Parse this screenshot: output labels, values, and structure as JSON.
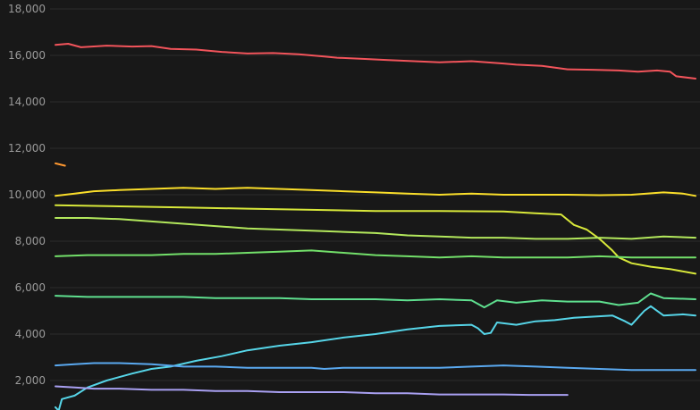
{
  "chart_data": {
    "type": "line",
    "title": "",
    "xlabel": "",
    "ylabel": "",
    "ylim": [
      900,
      18000
    ],
    "xlim": [
      0,
      100
    ],
    "grid": true,
    "legend": "none",
    "y_ticks": [
      {
        "value": 2000,
        "label": "2,000"
      },
      {
        "value": 4000,
        "label": "4,000"
      },
      {
        "value": 6000,
        "label": "6,000"
      },
      {
        "value": 8000,
        "label": "8,000"
      },
      {
        "value": 10000,
        "label": "10,000"
      },
      {
        "value": 12000,
        "label": "12,000"
      },
      {
        "value": 14000,
        "label": "14,000"
      },
      {
        "value": 16000,
        "label": "16,000"
      },
      {
        "value": 18000,
        "label": "18,000"
      }
    ],
    "series": [
      {
        "color": "#f2545b",
        "points": [
          [
            0,
            16450
          ],
          [
            2,
            16500
          ],
          [
            4,
            16350
          ],
          [
            8,
            16420
          ],
          [
            12,
            16380
          ],
          [
            15,
            16400
          ],
          [
            18,
            16280
          ],
          [
            22,
            16250
          ],
          [
            26,
            16150
          ],
          [
            30,
            16080
          ],
          [
            34,
            16100
          ],
          [
            38,
            16050
          ],
          [
            42,
            15950
          ],
          [
            44,
            15900
          ],
          [
            48,
            15850
          ],
          [
            52,
            15800
          ],
          [
            56,
            15750
          ],
          [
            60,
            15700
          ],
          [
            65,
            15750
          ],
          [
            70,
            15650
          ],
          [
            72,
            15600
          ],
          [
            76,
            15550
          ],
          [
            80,
            15400
          ],
          [
            84,
            15380
          ],
          [
            88,
            15350
          ],
          [
            91,
            15300
          ],
          [
            94,
            15350
          ],
          [
            96,
            15300
          ],
          [
            97,
            15100
          ],
          [
            100,
            15000
          ]
        ]
      },
      {
        "color": "#ff9830",
        "points": [
          [
            0,
            11350
          ],
          [
            1.5,
            11250
          ]
        ]
      },
      {
        "color": "#fade2a",
        "points": [
          [
            0,
            9950
          ],
          [
            3,
            10050
          ],
          [
            6,
            10150
          ],
          [
            10,
            10200
          ],
          [
            15,
            10250
          ],
          [
            20,
            10300
          ],
          [
            25,
            10250
          ],
          [
            30,
            10300
          ],
          [
            35,
            10250
          ],
          [
            40,
            10200
          ],
          [
            45,
            10150
          ],
          [
            50,
            10100
          ],
          [
            55,
            10050
          ],
          [
            60,
            10000
          ],
          [
            65,
            10050
          ],
          [
            70,
            10000
          ],
          [
            75,
            10000
          ],
          [
            80,
            10000
          ],
          [
            85,
            9980
          ],
          [
            90,
            10000
          ],
          [
            95,
            10100
          ],
          [
            98,
            10050
          ],
          [
            100,
            9950
          ]
        ]
      },
      {
        "color": "#d8e83a",
        "points": [
          [
            0,
            9550
          ],
          [
            10,
            9500
          ],
          [
            20,
            9450
          ],
          [
            30,
            9400
          ],
          [
            40,
            9350
          ],
          [
            50,
            9300
          ],
          [
            60,
            9300
          ],
          [
            70,
            9280
          ],
          [
            75,
            9200
          ],
          [
            79,
            9150
          ],
          [
            81,
            8700
          ],
          [
            83,
            8500
          ],
          [
            85,
            8100
          ],
          [
            87,
            7600
          ],
          [
            88,
            7300
          ],
          [
            90,
            7050
          ],
          [
            93,
            6900
          ],
          [
            96,
            6800
          ],
          [
            100,
            6600
          ]
        ]
      },
      {
        "color": "#b3e85c",
        "points": [
          [
            0,
            9000
          ],
          [
            5,
            9000
          ],
          [
            10,
            8950
          ],
          [
            15,
            8850
          ],
          [
            20,
            8750
          ],
          [
            25,
            8650
          ],
          [
            30,
            8550
          ],
          [
            35,
            8500
          ],
          [
            40,
            8450
          ],
          [
            45,
            8400
          ],
          [
            50,
            8350
          ],
          [
            55,
            8250
          ],
          [
            60,
            8200
          ],
          [
            65,
            8150
          ],
          [
            70,
            8150
          ],
          [
            75,
            8100
          ],
          [
            80,
            8100
          ],
          [
            85,
            8150
          ],
          [
            90,
            8100
          ],
          [
            95,
            8200
          ],
          [
            100,
            8150
          ]
        ]
      },
      {
        "color": "#73e06a",
        "points": [
          [
            0,
            7350
          ],
          [
            5,
            7400
          ],
          [
            10,
            7400
          ],
          [
            15,
            7400
          ],
          [
            20,
            7450
          ],
          [
            25,
            7450
          ],
          [
            30,
            7500
          ],
          [
            35,
            7550
          ],
          [
            40,
            7600
          ],
          [
            45,
            7500
          ],
          [
            50,
            7400
          ],
          [
            55,
            7350
          ],
          [
            60,
            7300
          ],
          [
            65,
            7350
          ],
          [
            70,
            7300
          ],
          [
            75,
            7300
          ],
          [
            80,
            7300
          ],
          [
            85,
            7350
          ],
          [
            90,
            7300
          ],
          [
            95,
            7300
          ],
          [
            100,
            7300
          ]
        ]
      },
      {
        "color": "#5fe08f",
        "points": [
          [
            0,
            5650
          ],
          [
            5,
            5600
          ],
          [
            10,
            5600
          ],
          [
            15,
            5600
          ],
          [
            20,
            5600
          ],
          [
            25,
            5550
          ],
          [
            30,
            5550
          ],
          [
            35,
            5550
          ],
          [
            40,
            5500
          ],
          [
            45,
            5500
          ],
          [
            50,
            5500
          ],
          [
            55,
            5450
          ],
          [
            60,
            5500
          ],
          [
            65,
            5450
          ],
          [
            67,
            5150
          ],
          [
            69,
            5450
          ],
          [
            72,
            5350
          ],
          [
            76,
            5450
          ],
          [
            80,
            5400
          ],
          [
            85,
            5400
          ],
          [
            88,
            5250
          ],
          [
            91,
            5350
          ],
          [
            93,
            5750
          ],
          [
            95,
            5550
          ],
          [
            100,
            5500
          ]
        ]
      },
      {
        "color": "#56d5e8",
        "points": [
          [
            0,
            850
          ],
          [
            0.5,
            700
          ],
          [
            1,
            1200
          ],
          [
            3,
            1350
          ],
          [
            5,
            1700
          ],
          [
            8,
            2000
          ],
          [
            12,
            2300
          ],
          [
            15,
            2500
          ],
          [
            18,
            2600
          ],
          [
            22,
            2850
          ],
          [
            26,
            3050
          ],
          [
            30,
            3300
          ],
          [
            35,
            3500
          ],
          [
            40,
            3650
          ],
          [
            45,
            3850
          ],
          [
            50,
            4000
          ],
          [
            55,
            4200
          ],
          [
            60,
            4350
          ],
          [
            65,
            4400
          ],
          [
            66,
            4250
          ],
          [
            67,
            4000
          ],
          [
            68,
            4050
          ],
          [
            69,
            4500
          ],
          [
            72,
            4400
          ],
          [
            75,
            4550
          ],
          [
            78,
            4600
          ],
          [
            81,
            4700
          ],
          [
            84,
            4750
          ],
          [
            87,
            4800
          ],
          [
            89,
            4550
          ],
          [
            90,
            4400
          ],
          [
            92,
            5000
          ],
          [
            93,
            5200
          ],
          [
            95,
            4800
          ],
          [
            98,
            4850
          ],
          [
            100,
            4800
          ]
        ]
      },
      {
        "color": "#5aa9f0",
        "points": [
          [
            0,
            2650
          ],
          [
            3,
            2700
          ],
          [
            6,
            2750
          ],
          [
            10,
            2750
          ],
          [
            15,
            2700
          ],
          [
            20,
            2600
          ],
          [
            25,
            2600
          ],
          [
            30,
            2550
          ],
          [
            35,
            2550
          ],
          [
            40,
            2550
          ],
          [
            42,
            2500
          ],
          [
            45,
            2550
          ],
          [
            50,
            2550
          ],
          [
            55,
            2550
          ],
          [
            60,
            2550
          ],
          [
            65,
            2600
          ],
          [
            70,
            2650
          ],
          [
            75,
            2600
          ],
          [
            80,
            2550
          ],
          [
            85,
            2500
          ],
          [
            90,
            2450
          ],
          [
            95,
            2450
          ],
          [
            100,
            2450
          ]
        ]
      },
      {
        "color": "#a9a0f2",
        "points": [
          [
            0,
            1750
          ],
          [
            3,
            1700
          ],
          [
            6,
            1650
          ],
          [
            10,
            1650
          ],
          [
            15,
            1600
          ],
          [
            20,
            1600
          ],
          [
            25,
            1550
          ],
          [
            30,
            1550
          ],
          [
            35,
            1500
          ],
          [
            40,
            1500
          ],
          [
            45,
            1500
          ],
          [
            50,
            1450
          ],
          [
            55,
            1450
          ],
          [
            60,
            1400
          ],
          [
            65,
            1400
          ],
          [
            70,
            1400
          ],
          [
            74,
            1380
          ],
          [
            76,
            1380
          ],
          [
            77,
            1380
          ],
          [
            78.5,
            1380
          ],
          [
            80,
            1380
          ]
        ]
      }
    ]
  }
}
